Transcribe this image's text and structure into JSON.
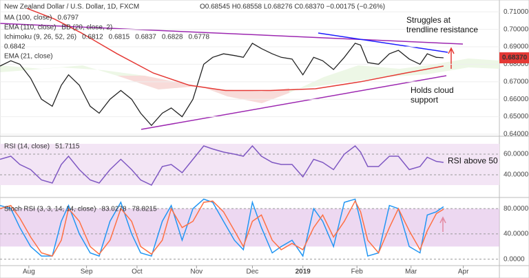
{
  "chart_data": [
    {
      "type": "line",
      "title": "New Zealand Dollar / U.S. Dollar, 1D, FXCM",
      "subtitle": "O0.68545 H0.68558 L0.68276 C0.68370 −0.00175 (−0.26%)",
      "legend": [
        "MA (100, close)",
        "0.6797",
        "EMA (110, close)",
        "BB (20, close, 2)",
        "Ichimoku (9, 26, 52, 26)",
        "0.6812",
        "0.6815",
        "0.6837",
        "0.6828",
        "0.6778",
        "0.6842",
        "EMA (21, close)"
      ],
      "annotations": [
        "Struggles at",
        "trendline resistance",
        "Holds cloud",
        "support"
      ],
      "price_label": "0.68370",
      "x": [
        0,
        6,
        11,
        17,
        23,
        29,
        34,
        38,
        44,
        50,
        55,
        61,
        67,
        73,
        78,
        84,
        90,
        95,
        101,
        107,
        113,
        118,
        124,
        130,
        135,
        140,
        145,
        151,
        156,
        162,
        168,
        174,
        179,
        185,
        191,
        197,
        200,
        204,
        210,
        216,
        221,
        227,
        233,
        237,
        242,
        246
      ],
      "series": [
        {
          "color": "#222222",
          "values": [
            0.679,
            0.682,
            0.68,
            0.672,
            0.66,
            0.656,
            0.668,
            0.674,
            0.668,
            0.656,
            0.652,
            0.66,
            0.665,
            0.66,
            0.652,
            0.645,
            0.652,
            0.655,
            0.65,
            0.66,
            0.68,
            0.684,
            0.686,
            0.685,
            0.684,
            0.692,
            0.689,
            0.686,
            0.684,
            0.683,
            0.674,
            0.684,
            0.682,
            0.677,
            0.684,
            0.692,
            0.691,
            0.681,
            0.68,
            0.686,
            0.688,
            0.683,
            0.68,
            0.686,
            0.684,
            0.6837
          ]
        },
        {
          "color": "#e53935",
          "x": [
            15,
            30,
            45,
            65,
            85,
            105,
            125,
            150,
            175,
            200,
            225,
            246
          ],
          "values": [
            0.712,
            0.706,
            0.698,
            0.686,
            0.675,
            0.668,
            0.665,
            0.665,
            0.666,
            0.67,
            0.675,
            0.679
          ]
        }
      ],
      "xlim": [
        0,
        277
      ],
      "ylim": [
        0.64,
        0.716
      ],
      "yticks": [
        {
          "value": 0.64,
          "label": "0.64000"
        },
        {
          "value": 0.65,
          "label": "0.65000"
        },
        {
          "value": 0.66,
          "label": "0.66000"
        },
        {
          "value": 0.67,
          "label": "0.67000"
        },
        {
          "value": 0.68,
          "label": "0.68000"
        },
        {
          "value": 0.69,
          "label": "0.69000"
        },
        {
          "value": 0.7,
          "label": "0.70000"
        },
        {
          "value": 0.71,
          "label": "0.71000"
        }
      ]
    },
    {
      "type": "line",
      "legend": [
        "RSI (14, close)",
        "51.7115"
      ],
      "annotations": [
        "RSI above 50"
      ],
      "x": [
        0,
        6,
        11,
        17,
        23,
        29,
        34,
        38,
        44,
        50,
        55,
        61,
        67,
        73,
        78,
        84,
        90,
        95,
        101,
        107,
        113,
        118,
        124,
        130,
        135,
        140,
        145,
        151,
        156,
        162,
        168,
        174,
        179,
        185,
        191,
        197,
        200,
        204,
        210,
        216,
        221,
        227,
        233,
        237,
        242,
        246
      ],
      "series": [
        {
          "color": "#7e57c2",
          "values": [
            55,
            58,
            50,
            45,
            35,
            32,
            50,
            58,
            45,
            35,
            32,
            45,
            55,
            45,
            35,
            30,
            48,
            50,
            42,
            55,
            68,
            65,
            62,
            60,
            58,
            68,
            58,
            52,
            50,
            50,
            38,
            55,
            52,
            45,
            60,
            68,
            62,
            48,
            48,
            58,
            58,
            45,
            48,
            57,
            53,
            52
          ]
        }
      ],
      "xlim": [
        0,
        277
      ],
      "ylim": [
        20,
        74
      ],
      "yticks": [
        {
          "value": 40,
          "label": "40.0000"
        },
        {
          "value": 60,
          "label": "60.0000"
        }
      ]
    },
    {
      "type": "line",
      "legend": [
        "Stoch RSI (3, 3, 14, 14, close)",
        "83.0278",
        "78.8215"
      ],
      "x": [
        0,
        6,
        11,
        17,
        23,
        29,
        34,
        38,
        44,
        50,
        55,
        61,
        67,
        73,
        78,
        84,
        90,
        95,
        101,
        107,
        113,
        118,
        124,
        130,
        135,
        140,
        145,
        151,
        156,
        162,
        168,
        174,
        179,
        185,
        191,
        197,
        200,
        204,
        210,
        216,
        221,
        227,
        233,
        237,
        242,
        246
      ],
      "series": [
        {
          "color": "#2196f3",
          "values": [
            85,
            80,
            50,
            20,
            5,
            5,
            60,
            85,
            40,
            10,
            5,
            60,
            90,
            40,
            10,
            5,
            60,
            85,
            30,
            80,
            95,
            90,
            60,
            30,
            15,
            90,
            50,
            10,
            20,
            30,
            5,
            80,
            60,
            20,
            90,
            95,
            60,
            5,
            10,
            85,
            80,
            20,
            10,
            70,
            75,
            83
          ]
        },
        {
          "color": "#ff7043",
          "values": [
            80,
            85,
            65,
            35,
            10,
            5,
            30,
            80,
            60,
            20,
            8,
            30,
            80,
            60,
            20,
            8,
            30,
            80,
            50,
            60,
            90,
            92,
            75,
            45,
            20,
            60,
            70,
            30,
            15,
            25,
            15,
            50,
            70,
            35,
            60,
            92,
            75,
            30,
            10,
            50,
            80,
            45,
            15,
            45,
            72,
            79
          ]
        }
      ],
      "xlim": [
        0,
        277
      ],
      "ylim": [
        -8,
        90
      ],
      "yticks": [
        {
          "value": 0,
          "label": "0.0000"
        },
        {
          "value": 40,
          "label": "40.0000"
        },
        {
          "value": 80,
          "label": "80.0000"
        }
      ],
      "xticks": [
        {
          "value": 16,
          "label": "Aug"
        },
        {
          "value": 48,
          "label": "Sep"
        },
        {
          "value": 76,
          "label": "Oct"
        },
        {
          "value": 109,
          "label": "Nov"
        },
        {
          "value": 140,
          "label": "Dec"
        },
        {
          "value": 168,
          "label": "2019"
        },
        {
          "value": 198,
          "label": "Feb"
        },
        {
          "value": 228,
          "label": "Mar"
        },
        {
          "value": 257,
          "label": "Apr"
        }
      ]
    }
  ]
}
